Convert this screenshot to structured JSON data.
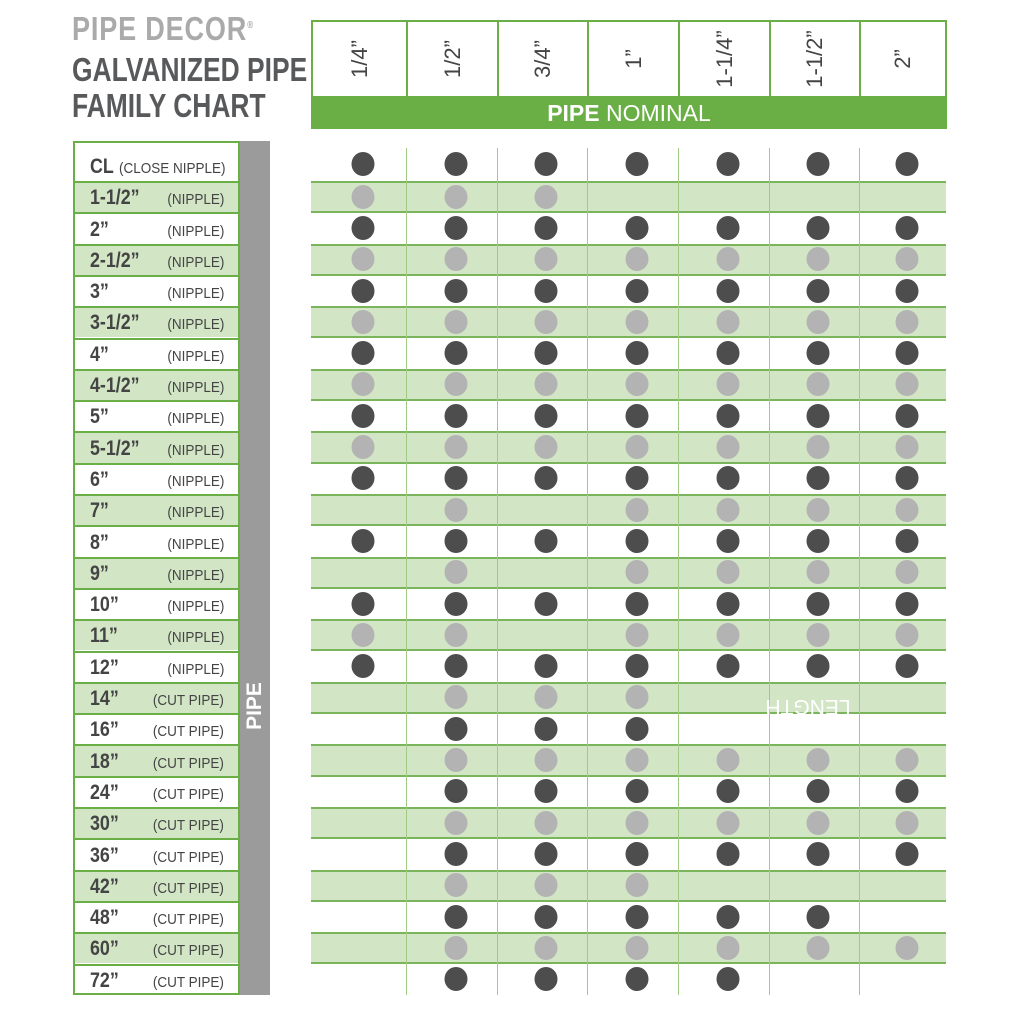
{
  "brand": "PIPE DECOR",
  "brand_mark": "®",
  "title_line1": "GALVANIZED PIPE",
  "title_line2": "FAMILY CHART",
  "colors": {
    "green": "#6aaf46",
    "band": "#d2e6c6",
    "dot_dark": "#4d4d4d",
    "dot_light": "#b3b3b3",
    "side_bar": "#9b9b9b"
  },
  "chart_data": {
    "type": "table",
    "x_axis_title_bold": "PIPE",
    "x_axis_title_rest": " NOMINAL",
    "y_axis_title_bold": "PIPE",
    "y_axis_title_rest": " LENGTH",
    "columns": [
      "1/4”",
      "1/2”",
      "3/4”",
      "1”",
      "1-1/4”",
      "1-1/2”",
      "2”"
    ],
    "rows": [
      {
        "length": "CL",
        "type": "(CLOSE NIPPLE)",
        "available": [
          1,
          1,
          1,
          1,
          1,
          1,
          1
        ]
      },
      {
        "length": "1-1/2”",
        "type": "(NIPPLE)",
        "available": [
          1,
          1,
          1,
          0,
          0,
          0,
          0
        ]
      },
      {
        "length": "2”",
        "type": "(NIPPLE)",
        "available": [
          1,
          1,
          1,
          1,
          1,
          1,
          1
        ]
      },
      {
        "length": "2-1/2”",
        "type": "(NIPPLE)",
        "available": [
          1,
          1,
          1,
          1,
          1,
          1,
          1
        ]
      },
      {
        "length": "3”",
        "type": "(NIPPLE)",
        "available": [
          1,
          1,
          1,
          1,
          1,
          1,
          1
        ]
      },
      {
        "length": "3-1/2”",
        "type": "(NIPPLE)",
        "available": [
          1,
          1,
          1,
          1,
          1,
          1,
          1
        ]
      },
      {
        "length": "4”",
        "type": "(NIPPLE)",
        "available": [
          1,
          1,
          1,
          1,
          1,
          1,
          1
        ]
      },
      {
        "length": "4-1/2”",
        "type": "(NIPPLE)",
        "available": [
          1,
          1,
          1,
          1,
          1,
          1,
          1
        ]
      },
      {
        "length": "5”",
        "type": "(NIPPLE)",
        "available": [
          1,
          1,
          1,
          1,
          1,
          1,
          1
        ]
      },
      {
        "length": "5-1/2”",
        "type": "(NIPPLE)",
        "available": [
          1,
          1,
          1,
          1,
          1,
          1,
          1
        ]
      },
      {
        "length": "6”",
        "type": "(NIPPLE)",
        "available": [
          1,
          1,
          1,
          1,
          1,
          1,
          1
        ]
      },
      {
        "length": "7”",
        "type": "(NIPPLE)",
        "available": [
          0,
          1,
          0,
          1,
          1,
          1,
          1
        ]
      },
      {
        "length": "8”",
        "type": "(NIPPLE)",
        "available": [
          1,
          1,
          1,
          1,
          1,
          1,
          1
        ]
      },
      {
        "length": "9”",
        "type": "(NIPPLE)",
        "available": [
          0,
          1,
          0,
          1,
          1,
          1,
          1
        ]
      },
      {
        "length": "10”",
        "type": "(NIPPLE)",
        "available": [
          1,
          1,
          1,
          1,
          1,
          1,
          1
        ]
      },
      {
        "length": "11”",
        "type": "(NIPPLE)",
        "available": [
          1,
          1,
          0,
          1,
          1,
          1,
          1
        ]
      },
      {
        "length": "12”",
        "type": "(NIPPLE)",
        "available": [
          1,
          1,
          1,
          1,
          1,
          1,
          1
        ]
      },
      {
        "length": "14”",
        "type": "(CUT PIPE)",
        "available": [
          0,
          1,
          1,
          1,
          0,
          0,
          0
        ]
      },
      {
        "length": "16”",
        "type": "(CUT PIPE)",
        "available": [
          0,
          1,
          1,
          1,
          0,
          0,
          0
        ]
      },
      {
        "length": "18”",
        "type": "(CUT PIPE)",
        "available": [
          0,
          1,
          1,
          1,
          1,
          1,
          1
        ]
      },
      {
        "length": "24”",
        "type": "(CUT PIPE)",
        "available": [
          0,
          1,
          1,
          1,
          1,
          1,
          1
        ]
      },
      {
        "length": "30”",
        "type": "(CUT PIPE)",
        "available": [
          0,
          1,
          1,
          1,
          1,
          1,
          1
        ]
      },
      {
        "length": "36”",
        "type": "(CUT PIPE)",
        "available": [
          0,
          1,
          1,
          1,
          1,
          1,
          1
        ]
      },
      {
        "length": "42”",
        "type": "(CUT PIPE)",
        "available": [
          0,
          1,
          1,
          1,
          0,
          0,
          0
        ]
      },
      {
        "length": "48”",
        "type": "(CUT PIPE)",
        "available": [
          0,
          1,
          1,
          1,
          1,
          1,
          0
        ]
      },
      {
        "length": "60”",
        "type": "(CUT PIPE)",
        "available": [
          0,
          1,
          1,
          1,
          1,
          1,
          1
        ]
      },
      {
        "length": "72”",
        "type": "(CUT PIPE)",
        "available": [
          0,
          1,
          1,
          1,
          1,
          0,
          0
        ]
      }
    ]
  }
}
